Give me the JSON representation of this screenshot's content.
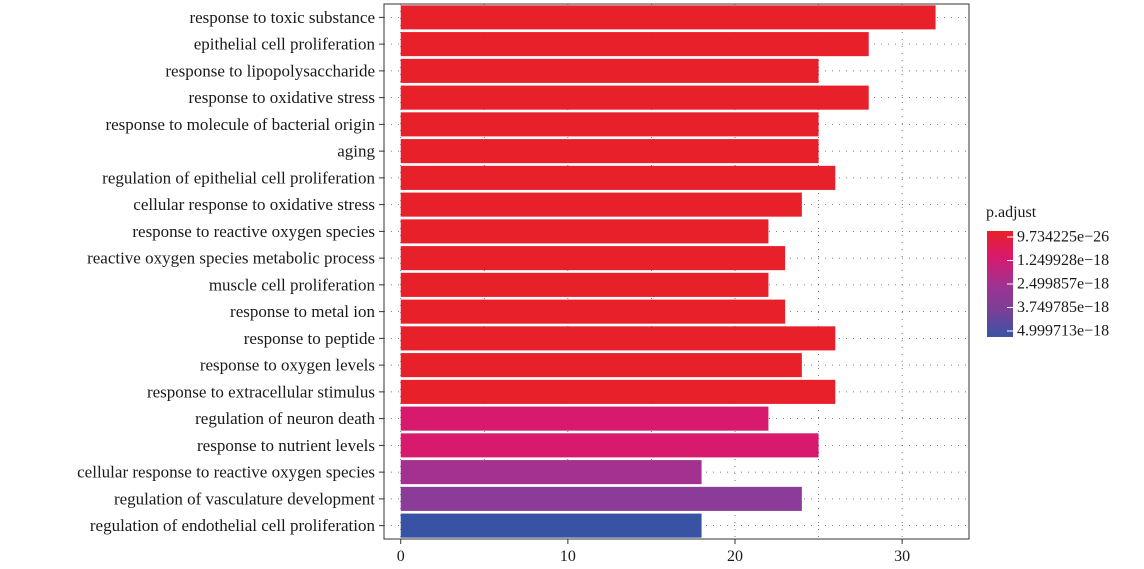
{
  "chart_data": {
    "type": "bar",
    "orientation": "horizontal",
    "categories": [
      "response to toxic substance",
      "epithelial cell proliferation",
      "response to lipopolysaccharide",
      "response to oxidative stress",
      "response to molecule of bacterial origin",
      "aging",
      "regulation of epithelial cell proliferation",
      "cellular response to oxidative stress",
      "response to reactive oxygen species",
      "reactive oxygen species metabolic process",
      "muscle cell proliferation",
      "response to metal ion",
      "response to peptide",
      "response to oxygen levels",
      "response to extracellular stimulus",
      "regulation of neuron death",
      "response to nutrient levels",
      "cellular response to reactive oxygen species",
      "regulation of vasculature development",
      "regulation of endothelial cell proliferation"
    ],
    "values": [
      32,
      28,
      25,
      28,
      25,
      25,
      26,
      24,
      22,
      23,
      22,
      23,
      26,
      24,
      26,
      22,
      25,
      18,
      24,
      18
    ],
    "bar_colors": [
      "#e8202a",
      "#e8202a",
      "#e8202a",
      "#e8202a",
      "#e8202a",
      "#e8202a",
      "#e8202a",
      "#e8202a",
      "#e8202a",
      "#e8202a",
      "#e8202a",
      "#e8202a",
      "#e8202a",
      "#e8202a",
      "#e8202a",
      "#d81a6e",
      "#d81a6e",
      "#a23190",
      "#8a3c98",
      "#3953a4"
    ],
    "x_ticks": [
      0,
      10,
      20,
      30
    ],
    "xlim": [
      -1,
      34
    ],
    "grid": true,
    "legend": {
      "title": "p.adjust",
      "placement": "right",
      "labels": [
        "9.734225e−26",
        "1.249928e−18",
        "2.499857e−18",
        "3.749785e−18",
        "4.999713e−18"
      ],
      "colors": [
        "#e8202a",
        "#d81a6e",
        "#a23190",
        "#7a3f98",
        "#3953a4"
      ]
    }
  }
}
